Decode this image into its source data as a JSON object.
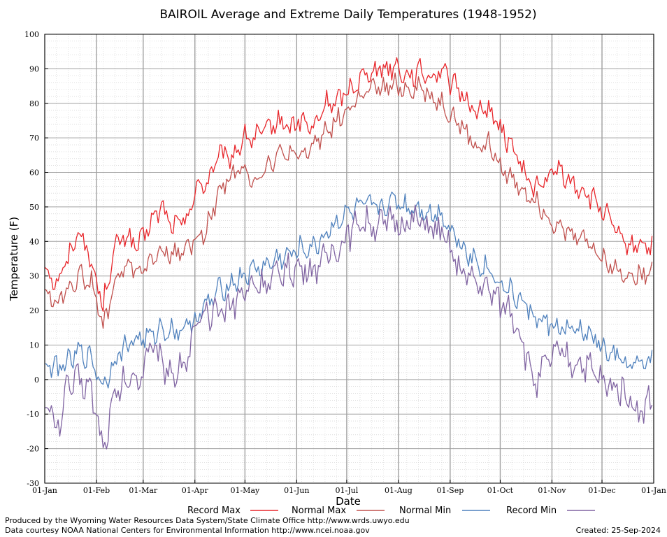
{
  "chart_data": {
    "type": "line",
    "title": "BAIROIL Average and Extreme Daily Temperatures (1948-1952)",
    "xlabel": "Date",
    "ylabel": "Temperature (F)",
    "ylim": [
      -30,
      100
    ],
    "y_ticks": [
      "-30",
      "-20",
      "-10",
      "0",
      "10",
      "20",
      "30",
      "40",
      "50",
      "60",
      "70",
      "80",
      "90",
      "100"
    ],
    "x_ticks": [
      "01-Jan",
      "01-Feb",
      "01-Mar",
      "01-Apr",
      "01-May",
      "01-Jun",
      "01-Jul",
      "01-Aug",
      "01-Sep",
      "01-Oct",
      "01-Nov",
      "01-Dec",
      "01-Jan"
    ],
    "x_tick_days": [
      0,
      31,
      59,
      90,
      120,
      151,
      181,
      212,
      243,
      273,
      304,
      334,
      365
    ],
    "grid": true,
    "legend_position": "bottom",
    "series": [
      {
        "name": "Record Max",
        "color": "#e8262b",
        "x": [
          0,
          7,
          14,
          21,
          28,
          35,
          42,
          49,
          56,
          63,
          70,
          77,
          84,
          91,
          98,
          105,
          112,
          119,
          126,
          133,
          140,
          147,
          154,
          161,
          168,
          175,
          182,
          189,
          196,
          203,
          210,
          217,
          224,
          231,
          238,
          245,
          252,
          259,
          266,
          273,
          280,
          287,
          294,
          301,
          308,
          315,
          322,
          329,
          336,
          343,
          350,
          357,
          364
        ],
        "values": [
          33,
          28,
          35,
          44,
          33,
          22,
          38,
          42,
          38,
          45,
          50,
          44,
          46,
          55,
          58,
          65,
          64,
          70,
          70,
          72,
          75,
          73,
          75,
          72,
          80,
          80,
          84,
          87,
          90,
          90,
          91,
          88,
          89,
          88,
          90,
          85,
          82,
          77,
          79,
          72,
          68,
          60,
          55,
          58,
          61,
          57,
          55,
          52,
          48,
          42,
          38,
          40,
          38
        ]
      },
      {
        "name": "Normal Max",
        "color": "#c0504d",
        "x": [
          0,
          7,
          14,
          21,
          28,
          35,
          42,
          49,
          56,
          63,
          70,
          77,
          84,
          91,
          98,
          105,
          112,
          119,
          126,
          133,
          140,
          147,
          154,
          161,
          168,
          175,
          182,
          189,
          196,
          203,
          210,
          217,
          224,
          231,
          238,
          245,
          252,
          259,
          266,
          273,
          280,
          287,
          294,
          301,
          308,
          315,
          322,
          329,
          336,
          343,
          350,
          357,
          364
        ],
        "values": [
          26,
          22,
          27,
          30,
          28,
          15,
          28,
          33,
          32,
          33,
          38,
          36,
          38,
          40,
          45,
          55,
          60,
          60,
          58,
          62,
          65,
          65,
          64,
          68,
          72,
          75,
          78,
          82,
          84,
          84,
          85,
          84,
          85,
          82,
          80,
          76,
          72,
          67,
          68,
          62,
          58,
          55,
          52,
          48,
          44,
          42,
          42,
          38,
          34,
          32,
          30,
          30,
          33
        ]
      },
      {
        "name": "Normal Min",
        "color": "#4f81bd",
        "x": [
          0,
          7,
          14,
          21,
          28,
          35,
          42,
          49,
          56,
          63,
          70,
          77,
          84,
          91,
          98,
          105,
          112,
          119,
          126,
          133,
          140,
          147,
          154,
          161,
          168,
          175,
          182,
          189,
          196,
          203,
          210,
          217,
          224,
          231,
          238,
          245,
          252,
          259,
          266,
          273,
          280,
          287,
          294,
          301,
          308,
          315,
          322,
          329,
          336,
          343,
          350,
          357,
          364
        ],
        "values": [
          5,
          3,
          5,
          8,
          6,
          -2,
          6,
          10,
          12,
          12,
          15,
          14,
          15,
          18,
          22,
          26,
          28,
          30,
          32,
          33,
          35,
          36,
          38,
          38,
          42,
          46,
          48,
          50,
          50,
          50,
          52,
          50,
          50,
          48,
          48,
          42,
          38,
          34,
          32,
          28,
          25,
          22,
          18,
          16,
          15,
          14,
          14,
          12,
          8,
          6,
          4,
          4,
          6
        ]
      },
      {
        "name": "Record Min",
        "color": "#8064a2",
        "x": [
          0,
          7,
          14,
          21,
          28,
          35,
          42,
          49,
          56,
          63,
          70,
          77,
          84,
          91,
          98,
          105,
          112,
          119,
          126,
          133,
          140,
          147,
          154,
          161,
          168,
          175,
          182,
          189,
          196,
          203,
          210,
          217,
          224,
          231,
          238,
          245,
          252,
          259,
          266,
          273,
          280,
          287,
          294,
          301,
          308,
          315,
          322,
          329,
          336,
          343,
          350,
          357,
          364
        ],
        "values": [
          -5,
          -15,
          -2,
          0,
          -3,
          -20,
          -5,
          0,
          0,
          10,
          5,
          2,
          5,
          15,
          18,
          20,
          22,
          25,
          28,
          28,
          30,
          32,
          32,
          32,
          35,
          38,
          42,
          46,
          45,
          45,
          46,
          45,
          46,
          44,
          42,
          35,
          30,
          28,
          26,
          22,
          20,
          10,
          -2,
          5,
          8,
          5,
          5,
          2,
          -2,
          -2,
          -5,
          -10,
          -5
        ]
      }
    ]
  },
  "legend": {
    "record_max": "Record Max",
    "normal_max": "Normal Max",
    "normal_min": "Normal Min",
    "record_min": "Record Min"
  },
  "footer": {
    "line1": "Produced by the Wyoming Water Resources Data System/State Climate Office http://www.wrds.uwyo.edu",
    "line2": "Data courtesy NOAA National Centers for Environmental Information http://www.ncei.noaa.gov",
    "created": "Created:  25-Sep-2024"
  }
}
